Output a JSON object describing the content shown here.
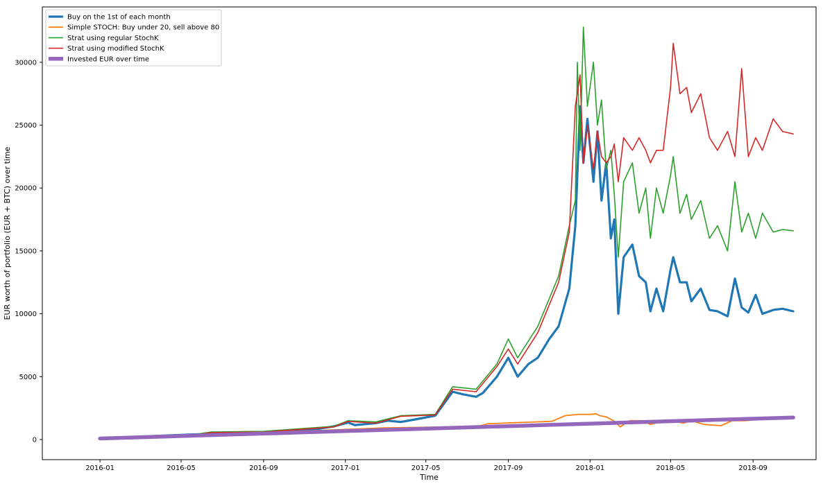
{
  "chart_data": {
    "type": "line",
    "title": "",
    "xlabel": "Time",
    "ylabel": "EUR worth of portfolio (EUR + BTC) over time",
    "xlim": [
      "2015-10-07",
      "2018-12-04"
    ],
    "ylim": [
      -1600,
      34400
    ],
    "x_ticks": [
      "2016-01",
      "2016-05",
      "2016-09",
      "2017-01",
      "2017-05",
      "2017-09",
      "2018-01",
      "2018-05",
      "2018-09"
    ],
    "y_ticks": [
      0,
      5000,
      10000,
      15000,
      20000,
      25000,
      30000
    ],
    "grid": false,
    "legend_position": "top-left",
    "series": [
      {
        "name": "Buy on the 1st of each month",
        "color": "#1f77b4",
        "x": [
          "2016-01-01",
          "2016-02-15",
          "2016-04-01",
          "2016-05-15",
          "2016-06-15",
          "2016-07-15",
          "2016-08-15",
          "2016-09-15",
          "2016-10-15",
          "2016-11-15",
          "2016-12-15",
          "2017-01-05",
          "2017-01-15",
          "2017-02-15",
          "2017-03-05",
          "2017-03-25",
          "2017-04-15",
          "2017-05-15",
          "2017-06-10",
          "2017-06-25",
          "2017-07-15",
          "2017-07-25",
          "2017-08-15",
          "2017-09-01",
          "2017-09-15",
          "2017-10-01",
          "2017-10-15",
          "2017-11-01",
          "2017-11-15",
          "2017-12-01",
          "2017-12-10",
          "2017-12-17",
          "2017-12-22",
          "2017-12-28",
          "2018-01-06",
          "2018-01-12",
          "2018-01-18",
          "2018-01-25",
          "2018-02-01",
          "2018-02-06",
          "2018-02-12",
          "2018-02-20",
          "2018-03-05",
          "2018-03-15",
          "2018-03-25",
          "2018-04-01",
          "2018-04-10",
          "2018-04-20",
          "2018-05-01",
          "2018-05-05",
          "2018-05-15",
          "2018-05-25",
          "2018-06-01",
          "2018-06-15",
          "2018-06-28",
          "2018-07-10",
          "2018-07-25",
          "2018-08-05",
          "2018-08-15",
          "2018-08-25",
          "2018-09-05",
          "2018-09-15",
          "2018-10-01",
          "2018-10-15",
          "2018-10-31"
        ],
        "y": [
          80,
          200,
          300,
          400,
          450,
          500,
          520,
          560,
          650,
          800,
          1050,
          1350,
          1150,
          1300,
          1500,
          1400,
          1600,
          1900,
          3800,
          3600,
          3400,
          3700,
          5000,
          6500,
          5000,
          6000,
          6500,
          8000,
          9000,
          12000,
          17000,
          26500,
          22000,
          25500,
          20500,
          24500,
          19000,
          22000,
          16000,
          17500,
          10000,
          14500,
          15500,
          13000,
          12500,
          10200,
          12000,
          10200,
          13500,
          14500,
          12500,
          12500,
          11000,
          12000,
          10300,
          10200,
          9800,
          12800,
          10500,
          10100,
          11500,
          10000,
          10300,
          10400,
          10200
        ]
      },
      {
        "name": "Simple STOCH: Buy under 20, sell above 80",
        "color": "#ff7f0e",
        "x": [
          "2016-01-01",
          "2016-06-01",
          "2016-12-01",
          "2017-03-01",
          "2017-06-01",
          "2017-07-15",
          "2017-08-01",
          "2017-09-15",
          "2017-10-10",
          "2017-11-05",
          "2017-11-25",
          "2017-12-15",
          "2018-01-01",
          "2018-01-10",
          "2018-01-15",
          "2018-01-25",
          "2018-02-05",
          "2018-02-15",
          "2018-03-01",
          "2018-03-20",
          "2018-04-01",
          "2018-04-15",
          "2018-05-01",
          "2018-05-20",
          "2018-06-01",
          "2018-06-20",
          "2018-07-15",
          "2018-08-01",
          "2018-08-20",
          "2018-09-10",
          "2018-10-01",
          "2018-10-31"
        ],
        "y": [
          80,
          420,
          740,
          930,
          1000,
          1000,
          1250,
          1350,
          1400,
          1450,
          1900,
          2000,
          2000,
          2050,
          1900,
          1800,
          1500,
          1000,
          1500,
          1500,
          1200,
          1400,
          1550,
          1300,
          1500,
          1200,
          1100,
          1500,
          1500,
          1600,
          1650,
          1750
        ]
      },
      {
        "name": "Strat using regular StochK",
        "color": "#2ca02c",
        "x": [
          "2016-01-01",
          "2016-03-15",
          "2016-05-15",
          "2016-06-15",
          "2016-09-01",
          "2016-12-15",
          "2017-01-05",
          "2017-02-15",
          "2017-03-25",
          "2017-05-15",
          "2017-06-10",
          "2017-07-15",
          "2017-08-15",
          "2017-09-01",
          "2017-09-15",
          "2017-10-15",
          "2017-11-15",
          "2017-12-01",
          "2017-12-10",
          "2017-12-13",
          "2017-12-17",
          "2017-12-22",
          "2017-12-28",
          "2018-01-06",
          "2018-01-12",
          "2018-01-18",
          "2018-01-25",
          "2018-02-01",
          "2018-02-06",
          "2018-02-12",
          "2018-02-20",
          "2018-03-05",
          "2018-03-15",
          "2018-03-25",
          "2018-04-01",
          "2018-04-10",
          "2018-04-20",
          "2018-05-01",
          "2018-05-05",
          "2018-05-15",
          "2018-05-25",
          "2018-06-01",
          "2018-06-15",
          "2018-06-28",
          "2018-07-10",
          "2018-07-25",
          "2018-08-05",
          "2018-08-15",
          "2018-08-25",
          "2018-09-05",
          "2018-09-15",
          "2018-10-01",
          "2018-10-15",
          "2018-10-31"
        ],
        "y": [
          80,
          250,
          350,
          600,
          650,
          1050,
          1500,
          1400,
          1900,
          2000,
          4200,
          4000,
          6000,
          8000,
          6500,
          9000,
          13000,
          17000,
          19000,
          30000,
          23000,
          32800,
          26500,
          30000,
          25000,
          27000,
          21500,
          23000,
          19500,
          14500,
          20500,
          22000,
          18000,
          20000,
          16000,
          20000,
          18000,
          21000,
          22500,
          18000,
          19500,
          17500,
          19000,
          16000,
          17000,
          15000,
          20500,
          16500,
          18000,
          16000,
          18000,
          16500,
          16700,
          16600
        ]
      },
      {
        "name": "Strat using modified StochK",
        "color": "#d62728",
        "x": [
          "2016-01-01",
          "2016-03-15",
          "2016-05-15",
          "2016-06-15",
          "2016-09-01",
          "2016-12-15",
          "2017-01-05",
          "2017-02-15",
          "2017-03-25",
          "2017-05-15",
          "2017-06-10",
          "2017-07-15",
          "2017-08-15",
          "2017-09-01",
          "2017-09-15",
          "2017-10-15",
          "2017-11-15",
          "2017-12-01",
          "2017-12-10",
          "2017-12-17",
          "2017-12-22",
          "2017-12-28",
          "2018-01-06",
          "2018-01-12",
          "2018-01-18",
          "2018-01-25",
          "2018-02-01",
          "2018-02-06",
          "2018-02-12",
          "2018-02-20",
          "2018-03-05",
          "2018-03-15",
          "2018-03-25",
          "2018-04-01",
          "2018-04-10",
          "2018-04-20",
          "2018-05-01",
          "2018-05-05",
          "2018-05-15",
          "2018-05-25",
          "2018-06-01",
          "2018-06-15",
          "2018-06-28",
          "2018-07-10",
          "2018-07-25",
          "2018-08-05",
          "2018-08-15",
          "2018-08-25",
          "2018-09-05",
          "2018-09-15",
          "2018-10-01",
          "2018-10-15",
          "2018-10-31"
        ],
        "y": [
          80,
          230,
          330,
          550,
          600,
          1000,
          1450,
          1300,
          1850,
          1950,
          4000,
          3800,
          5800,
          7200,
          6000,
          8500,
          12500,
          16500,
          26500,
          29000,
          22000,
          25000,
          21500,
          24500,
          22500,
          22000,
          22500,
          23500,
          20500,
          24000,
          23000,
          24000,
          23000,
          22000,
          23000,
          23000,
          28000,
          31500,
          27500,
          28000,
          26000,
          27500,
          24000,
          23000,
          24500,
          22500,
          29500,
          22500,
          24000,
          23000,
          25500,
          24500,
          24300
        ]
      },
      {
        "name": "Invested EUR over time",
        "color": "#9467bd",
        "x": [
          "2016-01-01",
          "2018-10-31"
        ],
        "y": [
          80,
          1750
        ]
      }
    ]
  }
}
